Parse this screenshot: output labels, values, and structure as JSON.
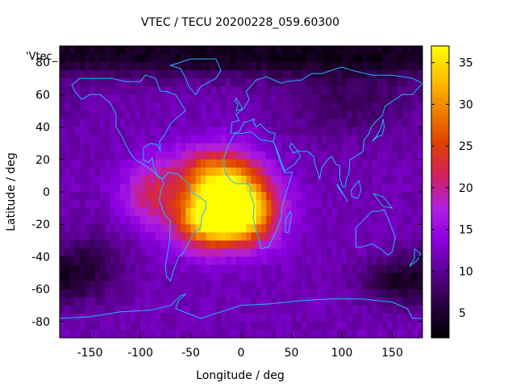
{
  "chart_data": {
    "type": "heatmap",
    "title": "VTEC / TECU 20200228_059.60300",
    "xlabel": "Longitude / deg",
    "ylabel": "Latitude / deg",
    "series_label": "'Vtec_",
    "xlim": [
      -180,
      180
    ],
    "ylim": [
      -90,
      90
    ],
    "xticks": [
      -150,
      -100,
      -50,
      0,
      50,
      100,
      150
    ],
    "yticks": [
      -80,
      -60,
      -40,
      -20,
      0,
      20,
      40,
      60,
      80
    ],
    "colorbar": {
      "range": [
        2,
        37
      ],
      "ticks": [
        5,
        10,
        15,
        20,
        25,
        30,
        35
      ],
      "palette": [
        "#000000",
        "#2a0040",
        "#5a0090",
        "#8a00e0",
        "#b020e0",
        "#d02060",
        "#e04000",
        "#f08000",
        "#ffc000",
        "#ffff00"
      ]
    },
    "background_level": 11.5,
    "features": [
      {
        "name": "south-america-atlantic-peak",
        "lon": -10,
        "lat": -12,
        "peak": 37,
        "sigma_lon": 28,
        "sigma_lat": 14
      },
      {
        "name": "south-america-hot-spot",
        "lon": -45,
        "lat": -20,
        "peak": 8,
        "sigma_lon": 18,
        "sigma_lat": 12
      },
      {
        "name": "west-africa-crest",
        "lon": -25,
        "lat": 12,
        "peak": 14,
        "sigma_lon": 30,
        "sigma_lat": 12
      },
      {
        "name": "pacific-extension",
        "lon": -90,
        "lat": -2,
        "peak": 9,
        "sigma_lon": 20,
        "sigma_lat": 14
      },
      {
        "name": "arctic-low",
        "lon": 0,
        "lat": 85,
        "peak": -8,
        "sigma_lon": 400,
        "sigma_lat": 10
      },
      {
        "name": "siberia-low",
        "lon": 110,
        "lat": 55,
        "peak": -4,
        "sigma_lon": 50,
        "sigma_lat": 15
      },
      {
        "name": "south-pacific-low",
        "lon": 160,
        "lat": -55,
        "peak": -7,
        "sigma_lon": 30,
        "sigma_lat": 10
      },
      {
        "name": "south-east-pacific-low",
        "lon": -150,
        "lat": -45,
        "peak": -5,
        "sigma_lon": 25,
        "sigma_lat": 15
      }
    ],
    "coastlines": [
      {
        "name": "north-america",
        "coords": [
          [
            -168,
            66
          ],
          [
            -160,
            70
          ],
          [
            -140,
            70
          ],
          [
            -128,
            70
          ],
          [
            -115,
            68
          ],
          [
            -100,
            68
          ],
          [
            -95,
            72
          ],
          [
            -85,
            70
          ],
          [
            -80,
            62
          ],
          [
            -75,
            62
          ],
          [
            -65,
            60
          ],
          [
            -60,
            55
          ],
          [
            -55,
            50
          ],
          [
            -65,
            45
          ],
          [
            -70,
            42
          ],
          [
            -76,
            35
          ],
          [
            -81,
            31
          ],
          [
            -80,
            25
          ],
          [
            -83,
            29
          ],
          [
            -90,
            30
          ],
          [
            -97,
            27
          ],
          [
            -97,
            20
          ],
          [
            -92,
            18
          ],
          [
            -88,
            21
          ],
          [
            -87,
            16
          ],
          [
            -83,
            10
          ],
          [
            -78,
            8
          ],
          [
            -82,
            9
          ],
          [
            -86,
            12
          ],
          [
            -92,
            15
          ],
          [
            -105,
            20
          ],
          [
            -110,
            24
          ],
          [
            -115,
            30
          ],
          [
            -118,
            34
          ],
          [
            -124,
            40
          ],
          [
            -124,
            48
          ],
          [
            -130,
            55
          ],
          [
            -140,
            60
          ],
          [
            -150,
            60
          ],
          [
            -158,
            57
          ],
          [
            -165,
            62
          ],
          [
            -168,
            66
          ]
        ]
      },
      {
        "name": "south-america",
        "coords": [
          [
            -78,
            8
          ],
          [
            -72,
            12
          ],
          [
            -63,
            11
          ],
          [
            -52,
            5
          ],
          [
            -50,
            0
          ],
          [
            -44,
            -2
          ],
          [
            -35,
            -6
          ],
          [
            -35,
            -10
          ],
          [
            -39,
            -15
          ],
          [
            -40,
            -22
          ],
          [
            -48,
            -26
          ],
          [
            -54,
            -34
          ],
          [
            -58,
            -38
          ],
          [
            -62,
            -40
          ],
          [
            -65,
            -45
          ],
          [
            -68,
            -50
          ],
          [
            -70,
            -55
          ],
          [
            -74,
            -52
          ],
          [
            -75,
            -45
          ],
          [
            -73,
            -38
          ],
          [
            -71,
            -30
          ],
          [
            -70,
            -18
          ],
          [
            -76,
            -14
          ],
          [
            -81,
            -5
          ],
          [
            -80,
            0
          ],
          [
            -77,
            5
          ],
          [
            -78,
            8
          ]
        ]
      },
      {
        "name": "africa-eurasia",
        "coords": [
          [
            -17,
            15
          ],
          [
            -17,
            21
          ],
          [
            -13,
            28
          ],
          [
            -9,
            33
          ],
          [
            -6,
            36
          ],
          [
            0,
            36
          ],
          [
            10,
            37
          ],
          [
            20,
            32
          ],
          [
            32,
            31
          ],
          [
            34,
            28
          ],
          [
            38,
            20
          ],
          [
            43,
            12
          ],
          [
            51,
            12
          ],
          [
            45,
            0
          ],
          [
            40,
            -10
          ],
          [
            40,
            -16
          ],
          [
            35,
            -24
          ],
          [
            32,
            -28
          ],
          [
            27,
            -34
          ],
          [
            20,
            -35
          ],
          [
            18,
            -30
          ],
          [
            15,
            -24
          ],
          [
            12,
            -16
          ],
          [
            13,
            -8
          ],
          [
            9,
            -1
          ],
          [
            9,
            4
          ],
          [
            5,
            5
          ],
          [
            -5,
            5
          ],
          [
            -10,
            7
          ],
          [
            -15,
            11
          ],
          [
            -17,
            15
          ]
        ]
      },
      {
        "name": "eurasia",
        "coords": [
          [
            -10,
            36
          ],
          [
            -9,
            43
          ],
          [
            -2,
            44
          ],
          [
            -5,
            48
          ],
          [
            2,
            51
          ],
          [
            5,
            54
          ],
          [
            8,
            57
          ],
          [
            5,
            62
          ],
          [
            15,
            69
          ],
          [
            25,
            71
          ],
          [
            40,
            67
          ],
          [
            45,
            68
          ],
          [
            60,
            69
          ],
          [
            70,
            73
          ],
          [
            80,
            73
          ],
          [
            100,
            77
          ],
          [
            110,
            75
          ],
          [
            130,
            72
          ],
          [
            150,
            72
          ],
          [
            170,
            70
          ],
          [
            180,
            67
          ],
          [
            170,
            60
          ],
          [
            160,
            60
          ],
          [
            155,
            58
          ],
          [
            143,
            53
          ],
          [
            140,
            47
          ],
          [
            133,
            43
          ],
          [
            129,
            40
          ],
          [
            127,
            36
          ],
          [
            122,
            32
          ],
          [
            121,
            25
          ],
          [
            114,
            22
          ],
          [
            108,
            20
          ],
          [
            107,
            11
          ],
          [
            105,
            9
          ],
          [
            103,
            3
          ],
          [
            101,
            3
          ],
          [
            98,
            8
          ],
          [
            98,
            16
          ],
          [
            94,
            17
          ],
          [
            90,
            22
          ],
          [
            86,
            20
          ],
          [
            80,
            15
          ],
          [
            78,
            8
          ],
          [
            73,
            18
          ],
          [
            72,
            22
          ],
          [
            66,
            25
          ],
          [
            58,
            25
          ],
          [
            55,
            26
          ],
          [
            50,
            30
          ],
          [
            48,
            28
          ],
          [
            52,
            24
          ],
          [
            56,
            25
          ],
          [
            59,
            22
          ],
          [
            53,
            17
          ],
          [
            43,
            13
          ],
          [
            39,
            20
          ],
          [
            35,
            27
          ],
          [
            32,
            31
          ],
          [
            34,
            36
          ],
          [
            27,
            37
          ],
          [
            22,
            40
          ],
          [
            19,
            42
          ],
          [
            15,
            40
          ],
          [
            12,
            44
          ],
          [
            13,
            45
          ],
          [
            5,
            43
          ],
          [
            3,
            43
          ],
          [
            -2,
            37
          ],
          [
            -10,
            36
          ]
        ]
      },
      {
        "name": "greenland",
        "coords": [
          [
            -50,
            82
          ],
          [
            -25,
            82
          ],
          [
            -20,
            75
          ],
          [
            -25,
            70
          ],
          [
            -40,
            65
          ],
          [
            -45,
            60
          ],
          [
            -52,
            65
          ],
          [
            -55,
            70
          ],
          [
            -60,
            76
          ],
          [
            -70,
            78
          ],
          [
            -50,
            82
          ]
        ]
      },
      {
        "name": "australia",
        "coords": [
          [
            114,
            -22
          ],
          [
            114,
            -34
          ],
          [
            120,
            -34
          ],
          [
            130,
            -32
          ],
          [
            138,
            -35
          ],
          [
            146,
            -39
          ],
          [
            150,
            -37
          ],
          [
            153,
            -28
          ],
          [
            145,
            -15
          ],
          [
            142,
            -11
          ],
          [
            136,
            -12
          ],
          [
            130,
            -12
          ],
          [
            122,
            -17
          ],
          [
            114,
            -22
          ]
        ]
      },
      {
        "name": "antarctica",
        "coords": [
          [
            -180,
            -78
          ],
          [
            -150,
            -77
          ],
          [
            -120,
            -74
          ],
          [
            -90,
            -73
          ],
          [
            -70,
            -70
          ],
          [
            -60,
            -64
          ],
          [
            -55,
            -63
          ],
          [
            -62,
            -67
          ],
          [
            -65,
            -72
          ],
          [
            -40,
            -78
          ],
          [
            -20,
            -74
          ],
          [
            0,
            -70
          ],
          [
            30,
            -69
          ],
          [
            60,
            -67
          ],
          [
            90,
            -66
          ],
          [
            120,
            -66
          ],
          [
            150,
            -68
          ],
          [
            165,
            -72
          ],
          [
            170,
            -78
          ],
          [
            180,
            -78
          ]
        ]
      },
      {
        "name": "british-isles",
        "coords": [
          [
            -5,
            50
          ],
          [
            1,
            51
          ],
          [
            0,
            53
          ],
          [
            -3,
            56
          ],
          [
            -5,
            58
          ],
          [
            -6,
            56
          ],
          [
            -3,
            54
          ],
          [
            -5,
            50
          ]
        ]
      },
      {
        "name": "japan",
        "coords": [
          [
            130,
            31
          ],
          [
            135,
            34
          ],
          [
            140,
            35
          ],
          [
            142,
            40
          ],
          [
            141,
            45
          ],
          [
            139,
            40
          ],
          [
            135,
            35
          ],
          [
            130,
            31
          ]
        ]
      },
      {
        "name": "new-zealand",
        "coords": [
          [
            172,
            -35
          ],
          [
            178,
            -38
          ],
          [
            175,
            -42
          ],
          [
            167,
            -46
          ],
          [
            172,
            -41
          ],
          [
            172,
            -35
          ]
        ]
      },
      {
        "name": "madagascar",
        "coords": [
          [
            44,
            -25
          ],
          [
            47,
            -25
          ],
          [
            50,
            -15
          ],
          [
            49,
            -12
          ],
          [
            44,
            -17
          ],
          [
            44,
            -25
          ]
        ]
      },
      {
        "name": "indonesia-borneo",
        "coords": [
          [
            109,
            1
          ],
          [
            117,
            7
          ],
          [
            119,
            1
          ],
          [
            116,
            -4
          ],
          [
            110,
            -3
          ],
          [
            109,
            1
          ]
        ]
      },
      {
        "name": "sumatra",
        "coords": [
          [
            95,
            5
          ],
          [
            106,
            -6
          ],
          [
            104,
            -4
          ],
          [
            96,
            3
          ],
          [
            95,
            5
          ]
        ]
      },
      {
        "name": "new-guinea",
        "coords": [
          [
            131,
            -1
          ],
          [
            141,
            -3
          ],
          [
            150,
            -10
          ],
          [
            141,
            -9
          ],
          [
            131,
            -1
          ]
        ]
      }
    ]
  }
}
